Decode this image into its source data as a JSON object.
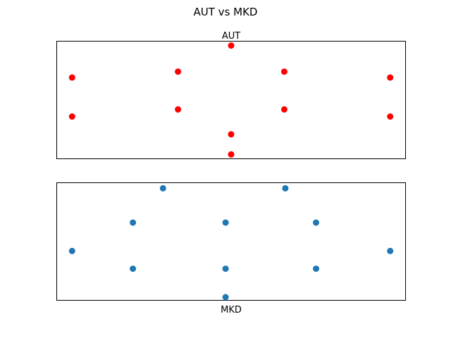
{
  "figure": {
    "title": "AUT vs MKD"
  },
  "chart_data": [
    {
      "type": "scatter",
      "title": "AUT",
      "xlabel": "",
      "ylabel": "",
      "axes_ticks": false,
      "grid": false,
      "color": "#ff0000",
      "xlim": [
        0,
        100
      ],
      "ylim": [
        0,
        100
      ],
      "points": [
        {
          "x": 50.0,
          "y": 96
        },
        {
          "x": 4.5,
          "y": 69
        },
        {
          "x": 34.8,
          "y": 74
        },
        {
          "x": 65.2,
          "y": 74
        },
        {
          "x": 95.5,
          "y": 69
        },
        {
          "x": 4.5,
          "y": 36
        },
        {
          "x": 34.8,
          "y": 42
        },
        {
          "x": 65.2,
          "y": 42
        },
        {
          "x": 95.5,
          "y": 36
        },
        {
          "x": 50.0,
          "y": 21
        },
        {
          "x": 50.0,
          "y": 4
        }
      ]
    },
    {
      "type": "scatter",
      "title": "",
      "xlabel": "MKD",
      "ylabel": "",
      "axes_ticks": false,
      "grid": false,
      "color": "#1f77b4",
      "xlim": [
        0,
        100
      ],
      "ylim": [
        0,
        100
      ],
      "points": [
        {
          "x": 30.5,
          "y": 95
        },
        {
          "x": 65.5,
          "y": 95
        },
        {
          "x": 21.9,
          "y": 66
        },
        {
          "x": 48.4,
          "y": 66
        },
        {
          "x": 74.3,
          "y": 66
        },
        {
          "x": 4.5,
          "y": 42
        },
        {
          "x": 95.5,
          "y": 42
        },
        {
          "x": 21.9,
          "y": 27
        },
        {
          "x": 48.4,
          "y": 27
        },
        {
          "x": 74.3,
          "y": 27
        },
        {
          "x": 48.4,
          "y": 3
        }
      ]
    }
  ]
}
